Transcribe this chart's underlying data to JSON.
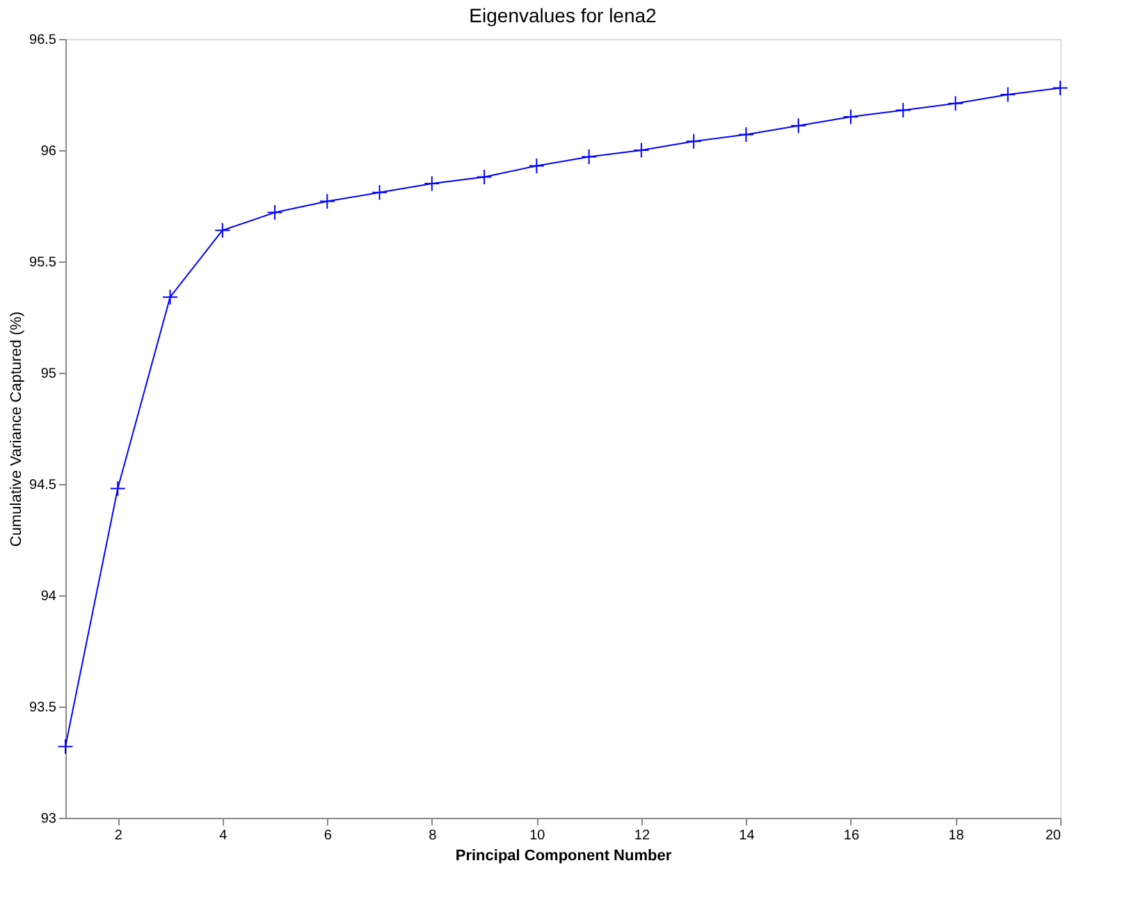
{
  "chart_data": {
    "type": "line",
    "title": "Eigenvalues for lena2",
    "xlabel": "Principal Component Number",
    "ylabel": "Cumulative Variance Captured (%)",
    "x": [
      1,
      2,
      3,
      4,
      5,
      6,
      7,
      8,
      9,
      10,
      11,
      12,
      13,
      14,
      15,
      16,
      17,
      18,
      19,
      20
    ],
    "series": [
      {
        "color": "#0000ff",
        "values": [
          93.32,
          94.48,
          95.34,
          95.64,
          95.72,
          95.77,
          95.81,
          95.85,
          95.88,
          95.93,
          95.97,
          96.0,
          96.04,
          96.07,
          96.11,
          96.15,
          96.18,
          96.21,
          96.25,
          96.28
        ]
      }
    ],
    "xlim": [
      1,
      20
    ],
    "xticks": [
      2,
      4,
      6,
      8,
      10,
      12,
      14,
      16,
      18,
      20
    ],
    "ylim": [
      93,
      96.5
    ],
    "yticks": [
      93,
      93.5,
      94,
      94.5,
      95,
      95.5,
      96,
      96.5
    ],
    "grid": false,
    "marker": "cross",
    "line_style": "solid"
  }
}
